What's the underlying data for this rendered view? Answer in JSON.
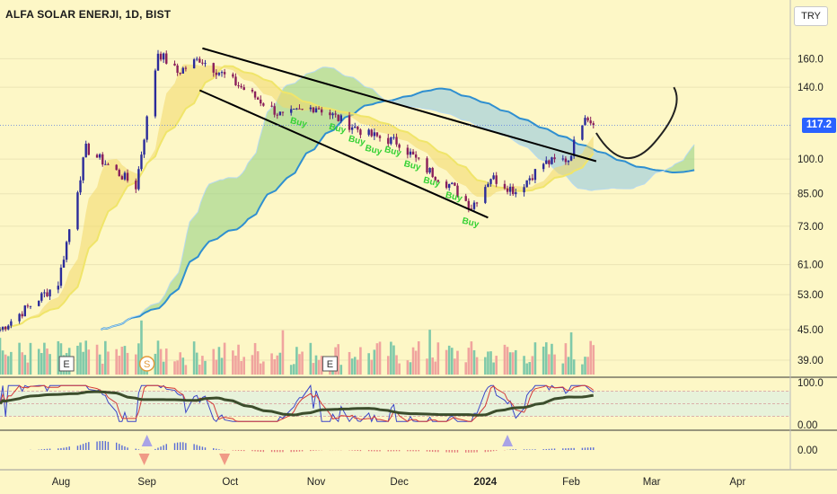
{
  "title": "ALFA SOLAR ENERJI, 1D, BIST",
  "currency_button": "TRY",
  "price_axis_ticks": [
    {
      "value": 160,
      "label": "160.0"
    },
    {
      "value": 140,
      "label": "140.0"
    },
    {
      "value": 100,
      "label": "100.0"
    },
    {
      "value": 85,
      "label": "85.00"
    },
    {
      "value": 73,
      "label": "73.00"
    },
    {
      "value": 61,
      "label": "61.00"
    },
    {
      "value": 53,
      "label": "53.00"
    },
    {
      "value": 45,
      "label": "45.00"
    },
    {
      "value": 39,
      "label": "39.00"
    }
  ],
  "last_price": "117.2",
  "oscillator_ticks": [
    {
      "value": 100,
      "label": "100.0"
    },
    {
      "value": 0,
      "label": "0.00"
    }
  ],
  "macd_ticks": [
    {
      "value": 0,
      "label": "0.00"
    }
  ],
  "time_axis": [
    "Aug",
    "Sep",
    "Oct",
    "Nov",
    "Dec",
    "2024",
    "Feb",
    "Mar",
    "Apr"
  ],
  "event_markers": [
    {
      "label": "E",
      "kind": "earnings"
    },
    {
      "label": "S",
      "kind": "split"
    },
    {
      "label": "E",
      "kind": "earnings"
    }
  ],
  "signal_label": "Buy",
  "colors": {
    "background": "#fdf7c6",
    "up": "#2b2b9a",
    "cloud_green": "#8fcf7f",
    "cloud_blue": "#8dc6e3",
    "cloud_red": "#f4a090",
    "trendline": "#000000",
    "vol_up": "#7fc9a9",
    "vol_down": "#f0a49e",
    "stoch_k": "#3b45c8",
    "stoch_d": "#d43a3a",
    "osc_slow": "#3c4d2c",
    "buy_text": "#34d134",
    "price_tag": "#2962ff"
  },
  "chart_data": {
    "type": "candlestick",
    "symbol": "ALFA SOLAR ENERJI",
    "interval": "1D",
    "exchange": "BIST",
    "y_scale": "log",
    "ylim": [
      36,
      178
    ],
    "x_range": [
      "2023-07-10",
      "2024-04-20"
    ],
    "last_price": 117.2,
    "swing_points": [
      {
        "date": "2023-07-10",
        "close": 45
      },
      {
        "date": "2023-07-31",
        "close": 56
      },
      {
        "date": "2023-08-10",
        "close": 105
      },
      {
        "date": "2023-08-28",
        "close": 88
      },
      {
        "date": "2023-09-05",
        "close": 165
      },
      {
        "date": "2023-09-12",
        "close": 150
      },
      {
        "date": "2023-09-20",
        "close": 160
      },
      {
        "date": "2023-10-05",
        "close": 140
      },
      {
        "date": "2023-10-20",
        "close": 122
      },
      {
        "date": "2023-11-01",
        "close": 128
      },
      {
        "date": "2023-11-10",
        "close": 120
      },
      {
        "date": "2023-11-20",
        "close": 112
      },
      {
        "date": "2023-12-01",
        "close": 108
      },
      {
        "date": "2023-12-10",
        "close": 96
      },
      {
        "date": "2023-12-20",
        "close": 88
      },
      {
        "date": "2023-12-27",
        "close": 80
      },
      {
        "date": "2024-01-03",
        "close": 92
      },
      {
        "date": "2024-01-12",
        "close": 86
      },
      {
        "date": "2024-01-22",
        "close": 98
      },
      {
        "date": "2024-01-31",
        "close": 100
      },
      {
        "date": "2024-02-06",
        "close": 124
      },
      {
        "date": "2024-02-09",
        "close": 117.2
      }
    ],
    "trendlines": [
      {
        "from": {
          "date": "2023-09-21",
          "price": 168
        },
        "to": {
          "date": "2024-02-10",
          "price": 99
        }
      },
      {
        "from": {
          "date": "2023-09-20",
          "price": 138
        },
        "to": {
          "date": "2024-01-02",
          "price": 76
        }
      }
    ],
    "projection_path": [
      {
        "date": "2024-02-10",
        "price": 113
      },
      {
        "date": "2024-02-20",
        "price": 103
      },
      {
        "date": "2024-03-02",
        "price": 108
      },
      {
        "date": "2024-03-09",
        "price": 140
      }
    ],
    "indicators": [
      "Ichimoku cloud",
      "moving-average ribbon",
      "volume",
      "stochastic",
      "MACD histogram"
    ]
  }
}
